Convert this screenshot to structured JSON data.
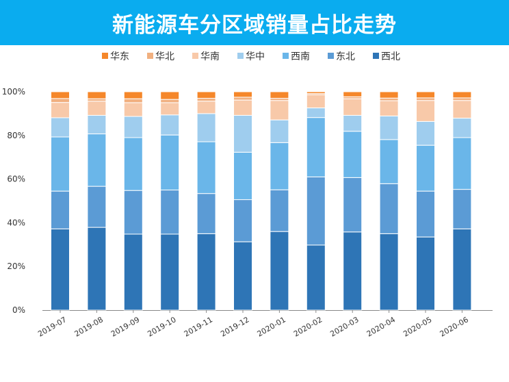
{
  "chart_data": {
    "type": "bar",
    "stacked": true,
    "title": "新能源车分区域销量占比走势",
    "xlabel": "",
    "ylabel": "",
    "ylim": [
      0,
      100
    ],
    "yticks": [
      "0%",
      "20%",
      "40%",
      "60%",
      "80%",
      "100%"
    ],
    "ytick_values": [
      0,
      20,
      40,
      60,
      80,
      100
    ],
    "grid": false,
    "legend_position": "top",
    "categories": [
      "2019-07",
      "2019-08",
      "2019-09",
      "2019-10",
      "2019-11",
      "2019-12",
      "2020-01",
      "2020-02",
      "2020-03",
      "2020-04",
      "2020-05",
      "2020-06"
    ],
    "series": [
      {
        "name": "西北",
        "color": "#2e75b6",
        "values": [
          37.2,
          37.9,
          34.8,
          34.8,
          35.0,
          31.3,
          36.0,
          29.8,
          35.8,
          35.0,
          33.5,
          37.2
        ]
      },
      {
        "name": "东北",
        "color": "#5b9bd5",
        "values": [
          17.3,
          18.8,
          20.0,
          20.2,
          18.4,
          19.3,
          19.1,
          31.2,
          24.9,
          22.9,
          21.0,
          18.1
        ]
      },
      {
        "name": "西南",
        "color": "#6ab6e9",
        "values": [
          24.8,
          24.0,
          24.2,
          25.2,
          23.7,
          21.7,
          21.6,
          27.2,
          21.2,
          20.2,
          21.0,
          23.7
        ]
      },
      {
        "name": "华中",
        "color": "#9fcdee",
        "values": [
          8.8,
          8.5,
          9.7,
          9.2,
          12.9,
          16.9,
          10.4,
          4.4,
          7.3,
          10.8,
          10.9,
          8.9
        ]
      },
      {
        "name": "华南",
        "color": "#f8c9a9",
        "values": [
          7.0,
          6.5,
          6.3,
          5.6,
          5.7,
          7.0,
          8.9,
          6.0,
          7.6,
          7.0,
          9.6,
          8.1
        ]
      },
      {
        "name": "华北",
        "color": "#f1b080",
        "values": [
          1.8,
          1.1,
          1.8,
          1.5,
          1.3,
          1.3,
          1.0,
          0.6,
          0.9,
          1.2,
          1.2,
          1.2
        ]
      },
      {
        "name": "华东",
        "color": "#f5872a",
        "values": [
          3.1,
          3.2,
          3.2,
          3.5,
          3.0,
          2.5,
          3.0,
          0.8,
          2.3,
          2.9,
          2.8,
          2.8
        ]
      }
    ]
  }
}
